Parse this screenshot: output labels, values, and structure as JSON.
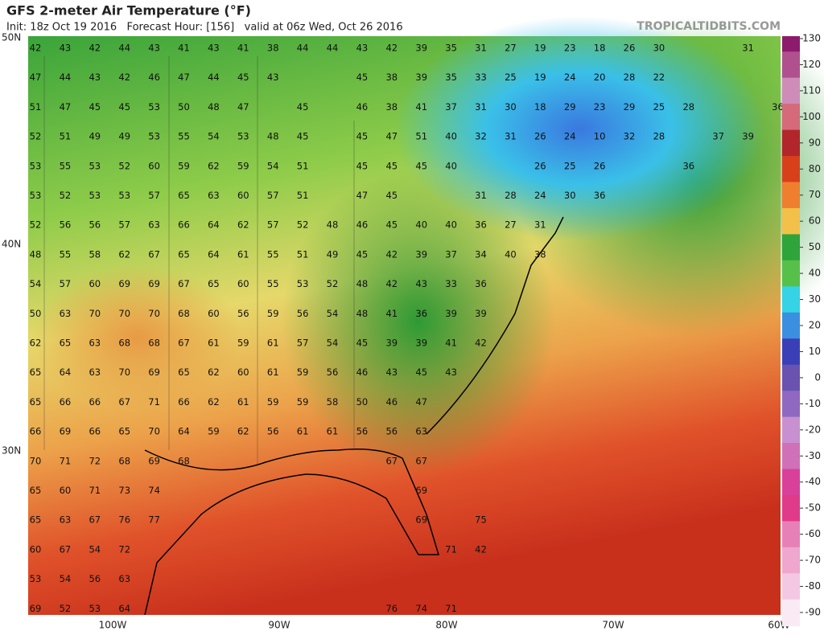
{
  "header": {
    "title": "GFS 2-meter Air Temperature (°F)",
    "subtitle": "Init: 18z Oct 19 2016   Forecast Hour: [156]   valid at 06z Wed, Oct 26 2016",
    "watermark": "TROPICALTIDBITS.COM"
  },
  "map": {
    "lat_labels": [
      "50N",
      "40N",
      "30N"
    ],
    "lon_labels": [
      "100W",
      "90W",
      "80W",
      "70W",
      "60W"
    ],
    "station_rows": [
      [
        42,
        43,
        42,
        44,
        43,
        41,
        43,
        41,
        38,
        44,
        44,
        43,
        42,
        39,
        35,
        31,
        27,
        19,
        23,
        18,
        26,
        30,
        null,
        null,
        31
      ],
      [
        47,
        44,
        43,
        42,
        46,
        47,
        44,
        45,
        43,
        null,
        null,
        45,
        38,
        39,
        35,
        33,
        25,
        19,
        24,
        20,
        28,
        22
      ],
      [
        51,
        47,
        45,
        45,
        53,
        50,
        48,
        47,
        null,
        45,
        null,
        46,
        38,
        41,
        37,
        31,
        30,
        18,
        29,
        23,
        29,
        25,
        28,
        null,
        null,
        36
      ],
      [
        52,
        51,
        49,
        49,
        53,
        55,
        54,
        53,
        48,
        45,
        null,
        45,
        47,
        51,
        40,
        32,
        31,
        26,
        24,
        10,
        32,
        28,
        null,
        37,
        39
      ],
      [
        53,
        55,
        53,
        52,
        60,
        59,
        62,
        59,
        54,
        51,
        null,
        45,
        45,
        45,
        40,
        null,
        null,
        26,
        25,
        26,
        null,
        null,
        36
      ],
      [
        53,
        52,
        53,
        53,
        57,
        65,
        63,
        60,
        57,
        51,
        null,
        47,
        45,
        null,
        null,
        31,
        28,
        24,
        30,
        36
      ],
      [
        52,
        56,
        56,
        57,
        63,
        66,
        64,
        62,
        57,
        52,
        48,
        46,
        45,
        40,
        40,
        36,
        27,
        31
      ],
      [
        48,
        55,
        58,
        62,
        67,
        65,
        64,
        61,
        55,
        51,
        49,
        45,
        42,
        39,
        37,
        34,
        40,
        38
      ],
      [
        54,
        57,
        60,
        69,
        69,
        67,
        65,
        60,
        55,
        53,
        52,
        48,
        42,
        43,
        33,
        36
      ],
      [
        50,
        63,
        70,
        70,
        70,
        68,
        60,
        56,
        59,
        56,
        54,
        48,
        41,
        36,
        39,
        39
      ],
      [
        62,
        65,
        63,
        68,
        68,
        67,
        61,
        59,
        61,
        57,
        54,
        45,
        39,
        39,
        41,
        42
      ],
      [
        65,
        64,
        63,
        70,
        69,
        65,
        62,
        60,
        61,
        59,
        56,
        46,
        43,
        45,
        43
      ],
      [
        65,
        66,
        66,
        67,
        71,
        66,
        62,
        61,
        59,
        59,
        58,
        50,
        46,
        47
      ],
      [
        66,
        69,
        66,
        65,
        70,
        64,
        59,
        62,
        56,
        61,
        61,
        56,
        56,
        63
      ],
      [
        70,
        71,
        72,
        68,
        69,
        68,
        null,
        null,
        null,
        null,
        null,
        null,
        67,
        67
      ],
      [
        65,
        60,
        71,
        73,
        74,
        null,
        null,
        null,
        null,
        null,
        null,
        null,
        null,
        69
      ],
      [
        65,
        63,
        67,
        76,
        77,
        null,
        null,
        null,
        null,
        null,
        null,
        null,
        null,
        69,
        null,
        75
      ],
      [
        60,
        67,
        54,
        72,
        null,
        null,
        null,
        null,
        null,
        null,
        null,
        null,
        null,
        null,
        71,
        42
      ],
      [
        53,
        54,
        56,
        63
      ],
      [
        69,
        52,
        53,
        64,
        null,
        null,
        null,
        null,
        null,
        null,
        null,
        null,
        76,
        74,
        71
      ]
    ]
  },
  "colorbar": {
    "ticks": [
      130,
      120,
      110,
      100,
      90,
      80,
      70,
      60,
      50,
      40,
      30,
      20,
      10,
      0,
      -10,
      -20,
      -30,
      -40,
      -50,
      -60,
      -70,
      -80,
      -90
    ],
    "colors": [
      "#8e1a6e",
      "#b0508f",
      "#cf8cb8",
      "#d46a7a",
      "#b2252b",
      "#d8401c",
      "#ef7f2e",
      "#f3c04a",
      "#2ea43a",
      "#57c04a",
      "#36d2e6",
      "#3a8fe0",
      "#3a3fb8",
      "#6a52b0",
      "#8f68c2",
      "#c890d0",
      "#d070b8",
      "#d8409a",
      "#e03a8a",
      "#e880b8",
      "#efa6cf",
      "#f4c8e2",
      "#faeaf3"
    ]
  }
}
